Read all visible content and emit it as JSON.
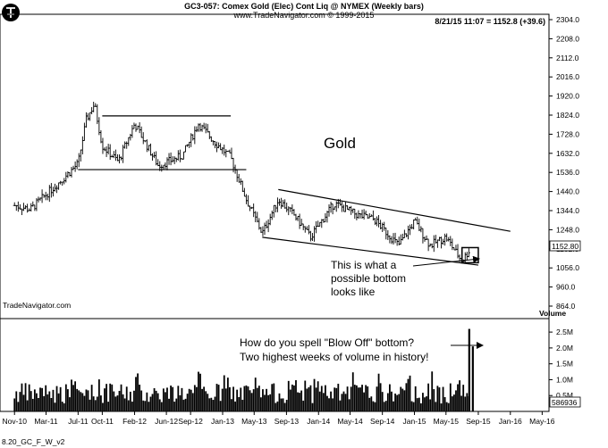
{
  "header": {
    "title": "GC3-057:  Comex Gold (Elec) Cont Liq @ NYMEX  (Weekly bars)",
    "subtitle": "www.TradeNavigator.com © 1999-2015",
    "quote": "8/21/15 11:07 = 1152.8 (+39.6)",
    "watermark": "TradeNavigator.com",
    "footer_code": "8.20_GC_F_W_v2",
    "volume_label": "Volume"
  },
  "logo": {
    "name": "trade-navigator-logo"
  },
  "chart_data": [
    {
      "type": "bar",
      "subtype": "ohlc-weekly",
      "title": "Comex Gold (Elec) Cont Liq @ NYMEX (Weekly bars)",
      "series_label": "Gold",
      "x_ticks": [
        "Nov-10",
        "Mar-11",
        "Jul-11",
        "Oct-11",
        "Feb-12",
        "Jun-12",
        "Sep-12",
        "Jan-13",
        "May-13",
        "Sep-13",
        "Jan-14",
        "May-14",
        "Sep-14",
        "Jan-15",
        "May-15",
        "Sep-15",
        "Jan-16",
        "May-16"
      ],
      "y_ticks": [
        "2304.0",
        "2208.0",
        "2112.0",
        "2016.0",
        "1920.0",
        "1824.0",
        "1728.0",
        "1632.0",
        "1536.0",
        "1440.0",
        "1344.0",
        "1248.0",
        "1152.0",
        "1056.0",
        "960.0",
        "864.0"
      ],
      "ylim": [
        820,
        2320
      ],
      "last_price": "1152.80",
      "closes": [
        {
          "date": "2010-11",
          "close": 1370
        },
        {
          "date": "2011-01",
          "close": 1350
        },
        {
          "date": "2011-03",
          "close": 1425
        },
        {
          "date": "2011-05",
          "close": 1500
        },
        {
          "date": "2011-07",
          "close": 1580
        },
        {
          "date": "2011-08",
          "close": 1800
        },
        {
          "date": "2011-09",
          "close": 1880
        },
        {
          "date": "2011-10",
          "close": 1670
        },
        {
          "date": "2011-12",
          "close": 1590
        },
        {
          "date": "2012-02",
          "close": 1780
        },
        {
          "date": "2012-05",
          "close": 1570
        },
        {
          "date": "2012-08",
          "close": 1620
        },
        {
          "date": "2012-10",
          "close": 1780
        },
        {
          "date": "2012-12",
          "close": 1690
        },
        {
          "date": "2013-02",
          "close": 1610
        },
        {
          "date": "2013-04",
          "close": 1400
        },
        {
          "date": "2013-06",
          "close": 1230
        },
        {
          "date": "2013-08",
          "close": 1400
        },
        {
          "date": "2013-10",
          "close": 1320
        },
        {
          "date": "2013-12",
          "close": 1210
        },
        {
          "date": "2014-03",
          "close": 1380
        },
        {
          "date": "2014-06",
          "close": 1320
        },
        {
          "date": "2014-08",
          "close": 1300
        },
        {
          "date": "2014-11",
          "close": 1170
        },
        {
          "date": "2015-01",
          "close": 1290
        },
        {
          "date": "2015-03",
          "close": 1170
        },
        {
          "date": "2015-05",
          "close": 1210
        },
        {
          "date": "2015-07",
          "close": 1090
        },
        {
          "date": "2015-08",
          "close": 1152.8
        }
      ],
      "annotations": [
        {
          "kind": "line",
          "label": "range top",
          "from": {
            "date": "2011-10",
            "price": 1820
          },
          "to": {
            "date": "2013-02",
            "price": 1820
          }
        },
        {
          "kind": "line",
          "label": "range bottom",
          "from": {
            "date": "2011-07",
            "price": 1550
          },
          "to": {
            "date": "2013-04",
            "price": 1550
          }
        },
        {
          "kind": "line",
          "label": "channel top",
          "from": {
            "date": "2013-08",
            "price": 1450
          },
          "to": {
            "date": "2016-01",
            "price": 1240
          }
        },
        {
          "kind": "line",
          "label": "channel bottom",
          "from": {
            "date": "2013-06",
            "price": 1210
          },
          "to": {
            "date": "2015-09",
            "price": 1070
          }
        },
        {
          "kind": "box",
          "label": "bottom box",
          "from": {
            "date": "2015-07",
            "price": 1158
          },
          "to": {
            "date": "2015-09",
            "price": 1082
          }
        }
      ],
      "bottom_note": [
        "This is what a",
        "possible bottom",
        "looks like"
      ]
    },
    {
      "type": "bar",
      "subtype": "volume",
      "y_ticks": [
        "2.5M",
        "2.0M",
        "1.5M",
        "1.0M",
        "0.5M"
      ],
      "ylim": [
        0,
        2700000
      ],
      "last_volume": "586936",
      "highlights": [
        {
          "date": "2015-07",
          "volume": 2600000
        },
        {
          "date": "2015-07",
          "volume": 2050000
        }
      ],
      "note": [
        "How do you spell \"Blow Off\" bottom?",
        "Two highest weeks of volume in history!"
      ]
    }
  ]
}
